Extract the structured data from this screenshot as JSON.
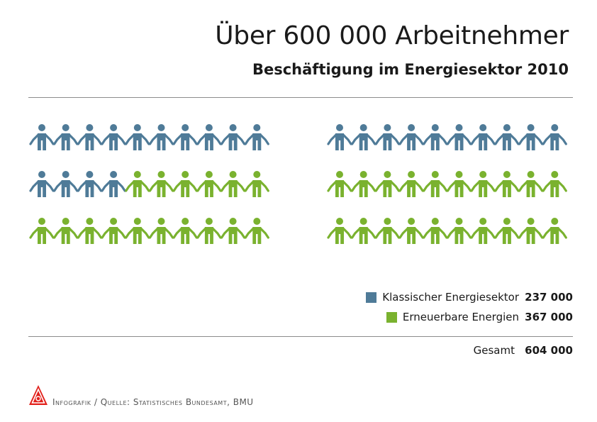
{
  "title": "Über 600 000 Arbeitnehmer",
  "subtitle": "Beschäftigung im Energiesektor 2010",
  "colors": {
    "klassisch": "#4f7b98",
    "erneuerbar": "#7ab22f",
    "logo": "#e2211c"
  },
  "chart_data": {
    "type": "pictogram",
    "series": [
      {
        "name": "Klassischer Energiesektor",
        "value": "237 000",
        "icons": 24,
        "color": "#4f7b98"
      },
      {
        "name": "Erneuerbare Energien",
        "value": "367 000",
        "icons": 36,
        "color": "#7ab22f"
      }
    ],
    "grids": [
      {
        "rows": [
          {
            "blue": 10,
            "green": 0
          },
          {
            "blue": 4,
            "green": 6
          },
          {
            "blue": 0,
            "green": 10
          }
        ]
      },
      {
        "rows": [
          {
            "blue": 10,
            "green": 0
          },
          {
            "blue": 0,
            "green": 10
          },
          {
            "blue": 0,
            "green": 10
          }
        ]
      }
    ],
    "total": {
      "label": "Gesamt",
      "value": "604 000"
    }
  },
  "footer": {
    "source": "Infografik / Quelle: Statistisches Bundesamt, BMU",
    "logo": "IG Metall"
  }
}
